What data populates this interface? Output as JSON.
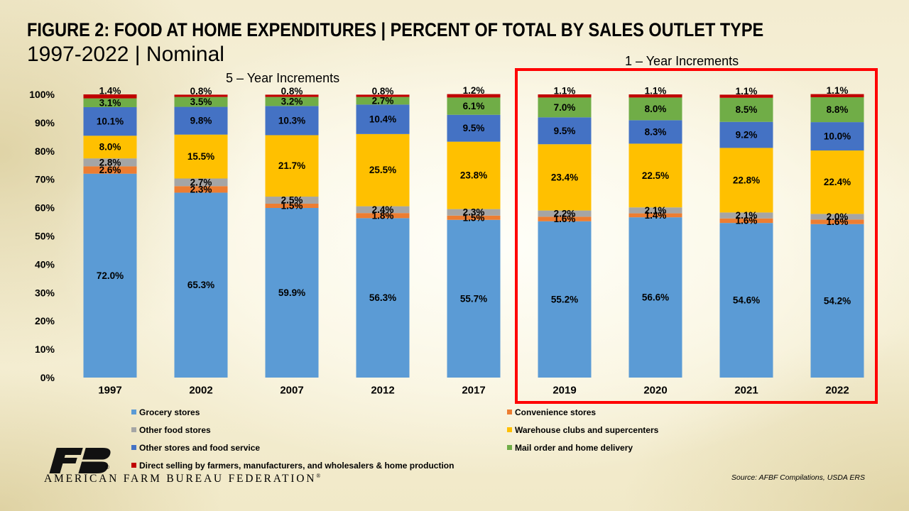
{
  "chart_data": {
    "type": "bar",
    "stacked": true,
    "title": "FIGURE 2: FOOD AT HOME EXPENDITURES | PERCENT OF TOTAL BY SALES OUTLET TYPE",
    "subtitle": "1997-2022 | Nominal",
    "annotations": [
      "5 – Year Increments",
      "1 – Year Increments"
    ],
    "categories": [
      "1997",
      "2002",
      "2007",
      "2012",
      "2017",
      "2019",
      "2020",
      "2021",
      "2022"
    ],
    "ylim": [
      0,
      100
    ],
    "yticks": [
      0,
      10,
      20,
      30,
      40,
      50,
      60,
      70,
      80,
      90,
      100
    ],
    "ytick_labels": [
      "0%",
      "10%",
      "20%",
      "30%",
      "40%",
      "50%",
      "60%",
      "70%",
      "80%",
      "90%",
      "100%"
    ],
    "unit": "%",
    "grid": false,
    "data_labels": true,
    "legend_position": "bottom",
    "series": [
      {
        "name": "Grocery stores",
        "color": "#5B9BD5",
        "values": [
          72.0,
          65.3,
          59.9,
          56.3,
          55.7,
          55.2,
          56.6,
          54.6,
          54.2
        ]
      },
      {
        "name": "Convenience stores",
        "color": "#ED7D31",
        "values": [
          2.6,
          2.3,
          1.5,
          1.8,
          1.5,
          1.6,
          1.4,
          1.6,
          1.6
        ]
      },
      {
        "name": "Other food stores",
        "color": "#A5A5A5",
        "values": [
          2.8,
          2.7,
          2.5,
          2.4,
          2.3,
          2.2,
          2.1,
          2.1,
          2.0
        ]
      },
      {
        "name": "Warehouse clubs and supercenters",
        "color": "#FFC000",
        "values": [
          8.0,
          15.5,
          21.7,
          25.5,
          23.8,
          23.4,
          22.5,
          22.8,
          22.4
        ]
      },
      {
        "name": "Other stores and food service",
        "color": "#4472C4",
        "values": [
          10.1,
          9.8,
          10.3,
          10.4,
          9.5,
          9.5,
          8.3,
          9.2,
          10.0
        ]
      },
      {
        "name": "Mail order and home delivery",
        "color": "#70AD47",
        "values": [
          3.1,
          3.5,
          3.2,
          2.7,
          6.1,
          7.0,
          8.0,
          8.5,
          8.8
        ]
      },
      {
        "name": "Direct selling by farmers, manufacturers, and wholesalers & home production",
        "color": "#C00000",
        "values": [
          1.4,
          0.8,
          0.8,
          0.8,
          1.2,
          1.1,
          1.1,
          1.1,
          1.1
        ]
      }
    ]
  },
  "source": "Source: AFBF Compilations, USDA ERS",
  "logo": {
    "letters": "FB",
    "organization": "AMERICAN FARM BUREAU FEDERATION",
    "registered_mark": "®"
  },
  "colors": {
    "highlight_box": "#FF0000",
    "logo": "#111111"
  }
}
